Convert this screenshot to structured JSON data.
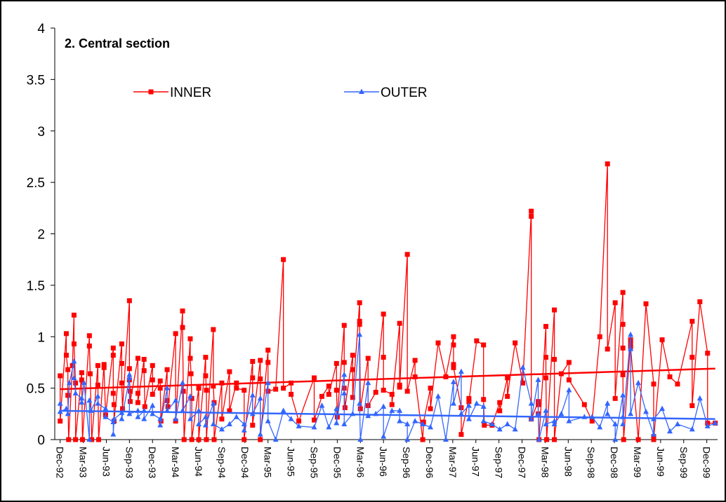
{
  "chart_data": {
    "type": "line",
    "title": "2. Central section",
    "xlim": [
      -0.7,
      85.4
    ],
    "xticks": [
      {
        "value": 0,
        "label": "Dec-92"
      },
      {
        "value": 3,
        "label": "Mar-93"
      },
      {
        "value": 6,
        "label": "Jun-93"
      },
      {
        "value": 9,
        "label": "Sep-93"
      },
      {
        "value": 12,
        "label": "Dec-93"
      },
      {
        "value": 15,
        "label": "Mar-94"
      },
      {
        "value": 18,
        "label": "Jun-94"
      },
      {
        "value": 21,
        "label": "Sep-94"
      },
      {
        "value": 24,
        "label": "Dec-94"
      },
      {
        "value": 27,
        "label": "Mar-95"
      },
      {
        "value": 30,
        "label": "Jun-95"
      },
      {
        "value": 33,
        "label": "Sep-95"
      },
      {
        "value": 36,
        "label": "Dec-95"
      },
      {
        "value": 39,
        "label": "Mar-96"
      },
      {
        "value": 42,
        "label": "Jun-96"
      },
      {
        "value": 45,
        "label": "Sep-96"
      },
      {
        "value": 48,
        "label": "Dec-96"
      },
      {
        "value": 51,
        "label": "Mar-97"
      },
      {
        "value": 54,
        "label": "Jun-97"
      },
      {
        "value": 57,
        "label": "Sep-97"
      },
      {
        "value": 60,
        "label": "Dec-97"
      },
      {
        "value": 63,
        "label": "Mar-98"
      },
      {
        "value": 66,
        "label": "Jun-98"
      },
      {
        "value": 69,
        "label": "Sep-98"
      },
      {
        "value": 72,
        "label": "Dec-98"
      },
      {
        "value": 75,
        "label": "Mar-99"
      },
      {
        "value": 78,
        "label": "Jun-99"
      },
      {
        "value": 81,
        "label": "Sep-99"
      },
      {
        "value": 84,
        "label": "Dec-99"
      }
    ],
    "ylim": [
      0,
      4
    ],
    "yticks": [
      0,
      0.5,
      1,
      1.5,
      2,
      2.5,
      3,
      3.5,
      4
    ],
    "grid": false,
    "series": [
      {
        "name": "INNER",
        "color": "#ff0000",
        "marker": "square",
        "trend": [
          0.49,
          0.69
        ],
        "x": [
          0,
          0,
          0.8,
          0.8,
          1.0,
          1.0,
          1.1,
          1.6,
          1.8,
          1.8,
          2.0,
          2.0,
          2.8,
          2.8,
          2.9,
          3.8,
          3.8,
          3.9,
          4.1,
          4.9,
          4.9,
          5.0,
          5.7,
          5.7,
          5.9,
          6.9,
          6.9,
          6.9,
          7.0,
          7.0,
          8.0,
          8.0,
          8.0,
          8.1,
          9.0,
          9.0,
          9.0,
          9.1,
          9.1,
          10.1,
          10.1,
          10.1,
          10.9,
          10.9,
          11.0,
          12.0,
          12.0,
          12.0,
          13.0,
          13.0,
          13.1,
          13.9,
          13.9,
          14.0,
          15.0,
          15.0,
          15.9,
          15.9,
          16.0,
          16.1,
          16.9,
          16.9,
          17.0,
          17.1,
          17.1,
          18.0,
          18.0,
          18.9,
          18.9,
          19.0,
          19.0,
          19.9,
          19.9,
          20.0,
          20.0,
          21.0,
          21.0,
          22.0,
          22.0,
          22.9,
          22.9,
          23.9,
          23.9,
          25.0,
          25.0,
          25.0,
          26.0,
          26.0,
          26.0,
          27.0,
          27.0,
          27.0,
          28.0,
          29.0,
          29.0,
          30.0,
          30.0,
          31.0,
          33.0,
          33.0,
          34.0,
          34.9,
          34.9,
          35.9,
          35.9,
          36.0,
          36.9,
          36.9,
          36.9,
          37.0,
          38.0,
          38.0,
          38.0,
          38.9,
          38.9,
          38.9,
          39.0,
          40.0,
          40.0,
          41.0,
          42.0,
          42.0,
          42.0,
          43.1,
          43.1,
          44.1,
          44.1,
          44.1,
          45.1,
          45.1,
          46.1,
          46.1,
          47.1,
          47.2,
          48.1,
          48.1,
          49.1,
          50.1,
          51.1,
          51.1,
          51.1,
          51.1,
          52.1,
          52.1,
          53.1,
          53.1,
          54.1,
          55.0,
          55.0,
          55.1,
          56.1,
          57.1,
          57.1,
          58.1,
          58.1,
          59.1,
          60.1,
          61.2,
          61.2,
          61.2,
          62.1,
          62.1,
          62.1,
          62.2,
          63.1,
          63.1,
          63.1,
          63.2,
          64.2,
          64.2,
          64.2,
          65.1,
          66.1,
          66.1,
          68.1,
          69.1,
          70.1,
          71.1,
          71.1,
          72.1,
          72.1,
          73.1,
          73.1,
          73.1,
          73.1,
          73.2,
          74.1,
          74.1,
          74.1,
          75.1,
          76.1,
          77.1,
          77.1,
          77.1,
          78.2,
          79.2,
          80.2,
          82.1,
          82.1,
          82.1,
          83.1,
          84.1,
          84.1,
          85.1
        ],
        "values": [
          0.62,
          0.18,
          1.03,
          0.82,
          0.68,
          0.43,
          0,
          0.72,
          1.21,
          0.93,
          0.55,
          0,
          0.65,
          0.58,
          0,
          1.01,
          0.91,
          0.64,
          0,
          0.72,
          0.53,
          0,
          0.73,
          0.7,
          0.24,
          0.89,
          0.82,
          0.45,
          0.34,
          0.18,
          0.93,
          0.74,
          0.55,
          0.3,
          1.35,
          0.69,
          0.58,
          0.47,
          0.37,
          0.79,
          0.45,
          0.36,
          0.78,
          0.67,
          0.32,
          0.72,
          0.58,
          0.44,
          0.57,
          0.5,
          0.18,
          0.68,
          0.38,
          0.32,
          1.03,
          0.18,
          1.25,
          1.09,
          0.47,
          0,
          0.98,
          0.79,
          0.64,
          0.4,
          0,
          0.5,
          0,
          0.8,
          0.62,
          0.48,
          0,
          1.07,
          0.52,
          0.36,
          0,
          0.55,
          0.2,
          0.66,
          0.28,
          0.55,
          0.5,
          0.48,
          0,
          0.76,
          0.6,
          0.14,
          0.77,
          0.59,
          0,
          0.87,
          0.75,
          0.47,
          0.49,
          1.75,
          0.5,
          0.55,
          0.44,
          0.18,
          0.6,
          0.19,
          0.42,
          0.52,
          0.44,
          0.74,
          0.48,
          0.22,
          1.11,
          0.75,
          0.5,
          0.31,
          0.82,
          0.68,
          0.41,
          1.33,
          1.15,
          1.12,
          0.3,
          0.79,
          0.33,
          0.46,
          1.22,
          0.8,
          0.48,
          0.44,
          0.34,
          1.13,
          0.53,
          0.51,
          1.8,
          0.47,
          0.77,
          0.61,
          0,
          0.17,
          0.5,
          0.3,
          0.94,
          0.61,
          1.0,
          0.92,
          0.73,
          0.7,
          0.31,
          0.05,
          0.4,
          0.37,
          0.96,
          0.92,
          0.39,
          0.14,
          0.14,
          0.36,
          0.28,
          0.6,
          0.42,
          0.94,
          0.55,
          2.22,
          2.17,
          0.2,
          0.37,
          0.34,
          0.25,
          0,
          1.1,
          0.8,
          0.6,
          0,
          1.26,
          0.78,
          0,
          0.64,
          0.75,
          0.58,
          0.34,
          0.18,
          1.0,
          2.68,
          0.88,
          1.33,
          0.4,
          1.43,
          1.12,
          0.89,
          0.63,
          0,
          0.97,
          0.93,
          0.9,
          0,
          1.32,
          0.54,
          0.03,
          0,
          0.97,
          0.61,
          0.54,
          1.15,
          0.8,
          0.33,
          1.34,
          0.84,
          0.16,
          0.16
        ]
      },
      {
        "name": "OUTER",
        "color": "#3366ff",
        "marker": "triangle",
        "trend": [
          0.28,
          0.2
        ],
        "x": [
          0,
          0,
          0.8,
          1.0,
          1.2,
          1.8,
          1.8,
          2.0,
          2.8,
          2.8,
          3.1,
          3.8,
          3.8,
          4.0,
          4.9,
          4.9,
          5.9,
          5.9,
          6.9,
          6.9,
          7.0,
          8.0,
          8.0,
          9.0,
          9.0,
          9.0,
          10.1,
          10.1,
          10.9,
          10.9,
          12.0,
          12.0,
          13.0,
          13.0,
          13.9,
          13.9,
          15.0,
          15.0,
          15.9,
          15.9,
          16.9,
          16.9,
          18.0,
          18.0,
          18.9,
          18.9,
          19.9,
          19.9,
          21.0,
          22.0,
          22.9,
          23.9,
          23.9,
          25.0,
          25.0,
          26.0,
          26.0,
          27.0,
          27.0,
          28.0,
          29.0,
          30.0,
          31.0,
          33.0,
          34.0,
          34.9,
          35.9,
          35.9,
          36.9,
          36.9,
          36.9,
          38.0,
          38.9,
          38.9,
          39.0,
          40.0,
          40.0,
          41.0,
          42.0,
          42.0,
          43.1,
          44.1,
          44.1,
          45.1,
          45.1,
          46.1,
          47.1,
          48.1,
          49.1,
          50.1,
          51.1,
          51.1,
          52.1,
          52.1,
          53.1,
          53.1,
          54.1,
          55.0,
          55.0,
          56.1,
          57.1,
          58.1,
          59.1,
          60.1,
          61.2,
          61.2,
          62.1,
          62.1,
          62.2,
          63.1,
          63.1,
          64.2,
          64.2,
          65.1,
          66.1,
          66.1,
          68.1,
          69.1,
          70.1,
          71.1,
          71.1,
          72.1,
          72.1,
          73.1,
          73.1,
          73.1,
          74.1,
          74.1,
          74.1,
          75.1,
          76.1,
          77.1,
          77.1,
          78.2,
          79.2,
          80.2,
          82.1,
          83.1,
          84.1,
          85.1
        ],
        "values": [
          0.35,
          0.27,
          0.3,
          0.25,
          0.55,
          0.76,
          0.6,
          0.45,
          0.4,
          0.36,
          0.55,
          0,
          0.38,
          0.28,
          0.42,
          0.35,
          0.3,
          0.22,
          0.17,
          0.05,
          0.2,
          0.26,
          0.2,
          0.6,
          0.63,
          0.25,
          0.28,
          0.22,
          0.28,
          0.2,
          0.33,
          0.25,
          0.2,
          0.14,
          0.5,
          0.28,
          0.38,
          0.2,
          0.55,
          0.28,
          0.42,
          0.2,
          0.28,
          0.15,
          0.22,
          0.14,
          0.35,
          0.15,
          0.1,
          0.15,
          0.22,
          0.15,
          0.09,
          0.43,
          0.25,
          0.4,
          0.05,
          0.55,
          0.18,
          0,
          0.28,
          0.2,
          0.13,
          0.12,
          0.33,
          0.12,
          0.3,
          0.16,
          0.63,
          0.45,
          0.15,
          0.25,
          1.02,
          0.35,
          0,
          0.55,
          0.23,
          0.25,
          0.32,
          0.03,
          0.28,
          0.28,
          0.18,
          0.15,
          0,
          0.18,
          0.15,
          0.12,
          0.42,
          0,
          0.56,
          0.35,
          0.66,
          0.25,
          0.33,
          0.2,
          0.35,
          0.32,
          0.18,
          0.15,
          0.1,
          0.15,
          0.1,
          0.7,
          0.35,
          0.2,
          0.58,
          0.25,
          0,
          0.28,
          0.15,
          0.18,
          0.15,
          0.25,
          0.48,
          0.18,
          0.22,
          0.22,
          0.12,
          0.35,
          0.25,
          0.15,
          0,
          0.43,
          0.22,
          0.15,
          1.02,
          0.88,
          0.25,
          0.55,
          0.27,
          0.05,
          0.2,
          0.3,
          0.08,
          0.15,
          0.1,
          0.4,
          0.13,
          0.16
        ]
      }
    ]
  }
}
